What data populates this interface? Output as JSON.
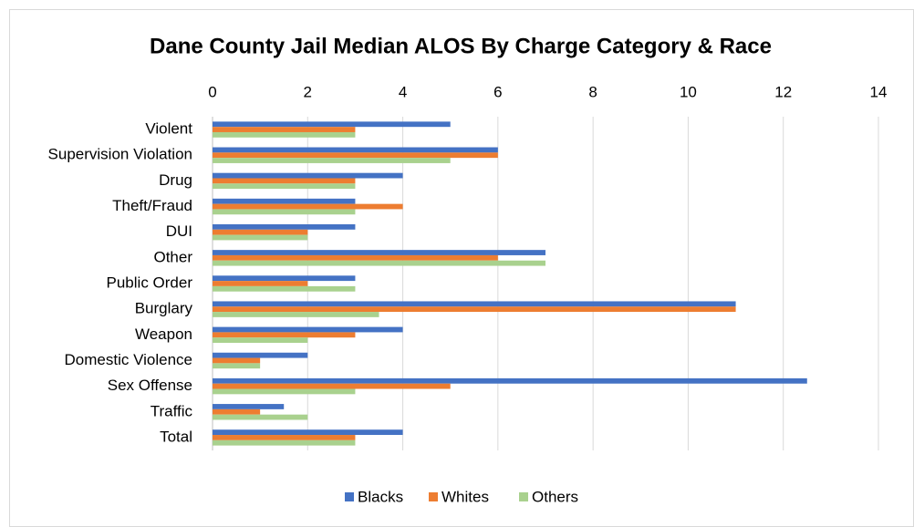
{
  "chart_data": {
    "type": "hbar",
    "title": "Dane County Jail Median ALOS By Charge Category & Race",
    "categories": [
      "Violent",
      "Supervision Violation",
      "Drug",
      "Theft/Fraud",
      "DUI",
      "Other",
      "Public Order",
      "Burglary",
      "Weapon",
      "Domestic Violence",
      "Sex Offense",
      "Traffic",
      "Total"
    ],
    "series": [
      {
        "name": "Blacks",
        "color": "#4472c4",
        "values": [
          5,
          6,
          4,
          3,
          3,
          7,
          3,
          11,
          4,
          2,
          12.5,
          1.5,
          4
        ]
      },
      {
        "name": "Whites",
        "color": "#ed7d31",
        "values": [
          3,
          6,
          3,
          4,
          2,
          6,
          2,
          11,
          3,
          1,
          5,
          1,
          3
        ]
      },
      {
        "name": "Others",
        "color": "#a9d18e",
        "values": [
          3,
          5,
          3,
          3,
          2,
          7,
          3,
          3.5,
          2,
          1,
          3,
          2,
          3
        ]
      }
    ],
    "xlim": [
      0,
      14
    ],
    "xticks": [
      0,
      2,
      4,
      6,
      8,
      10,
      12,
      14
    ],
    "grid": true,
    "legend": "bottom"
  }
}
